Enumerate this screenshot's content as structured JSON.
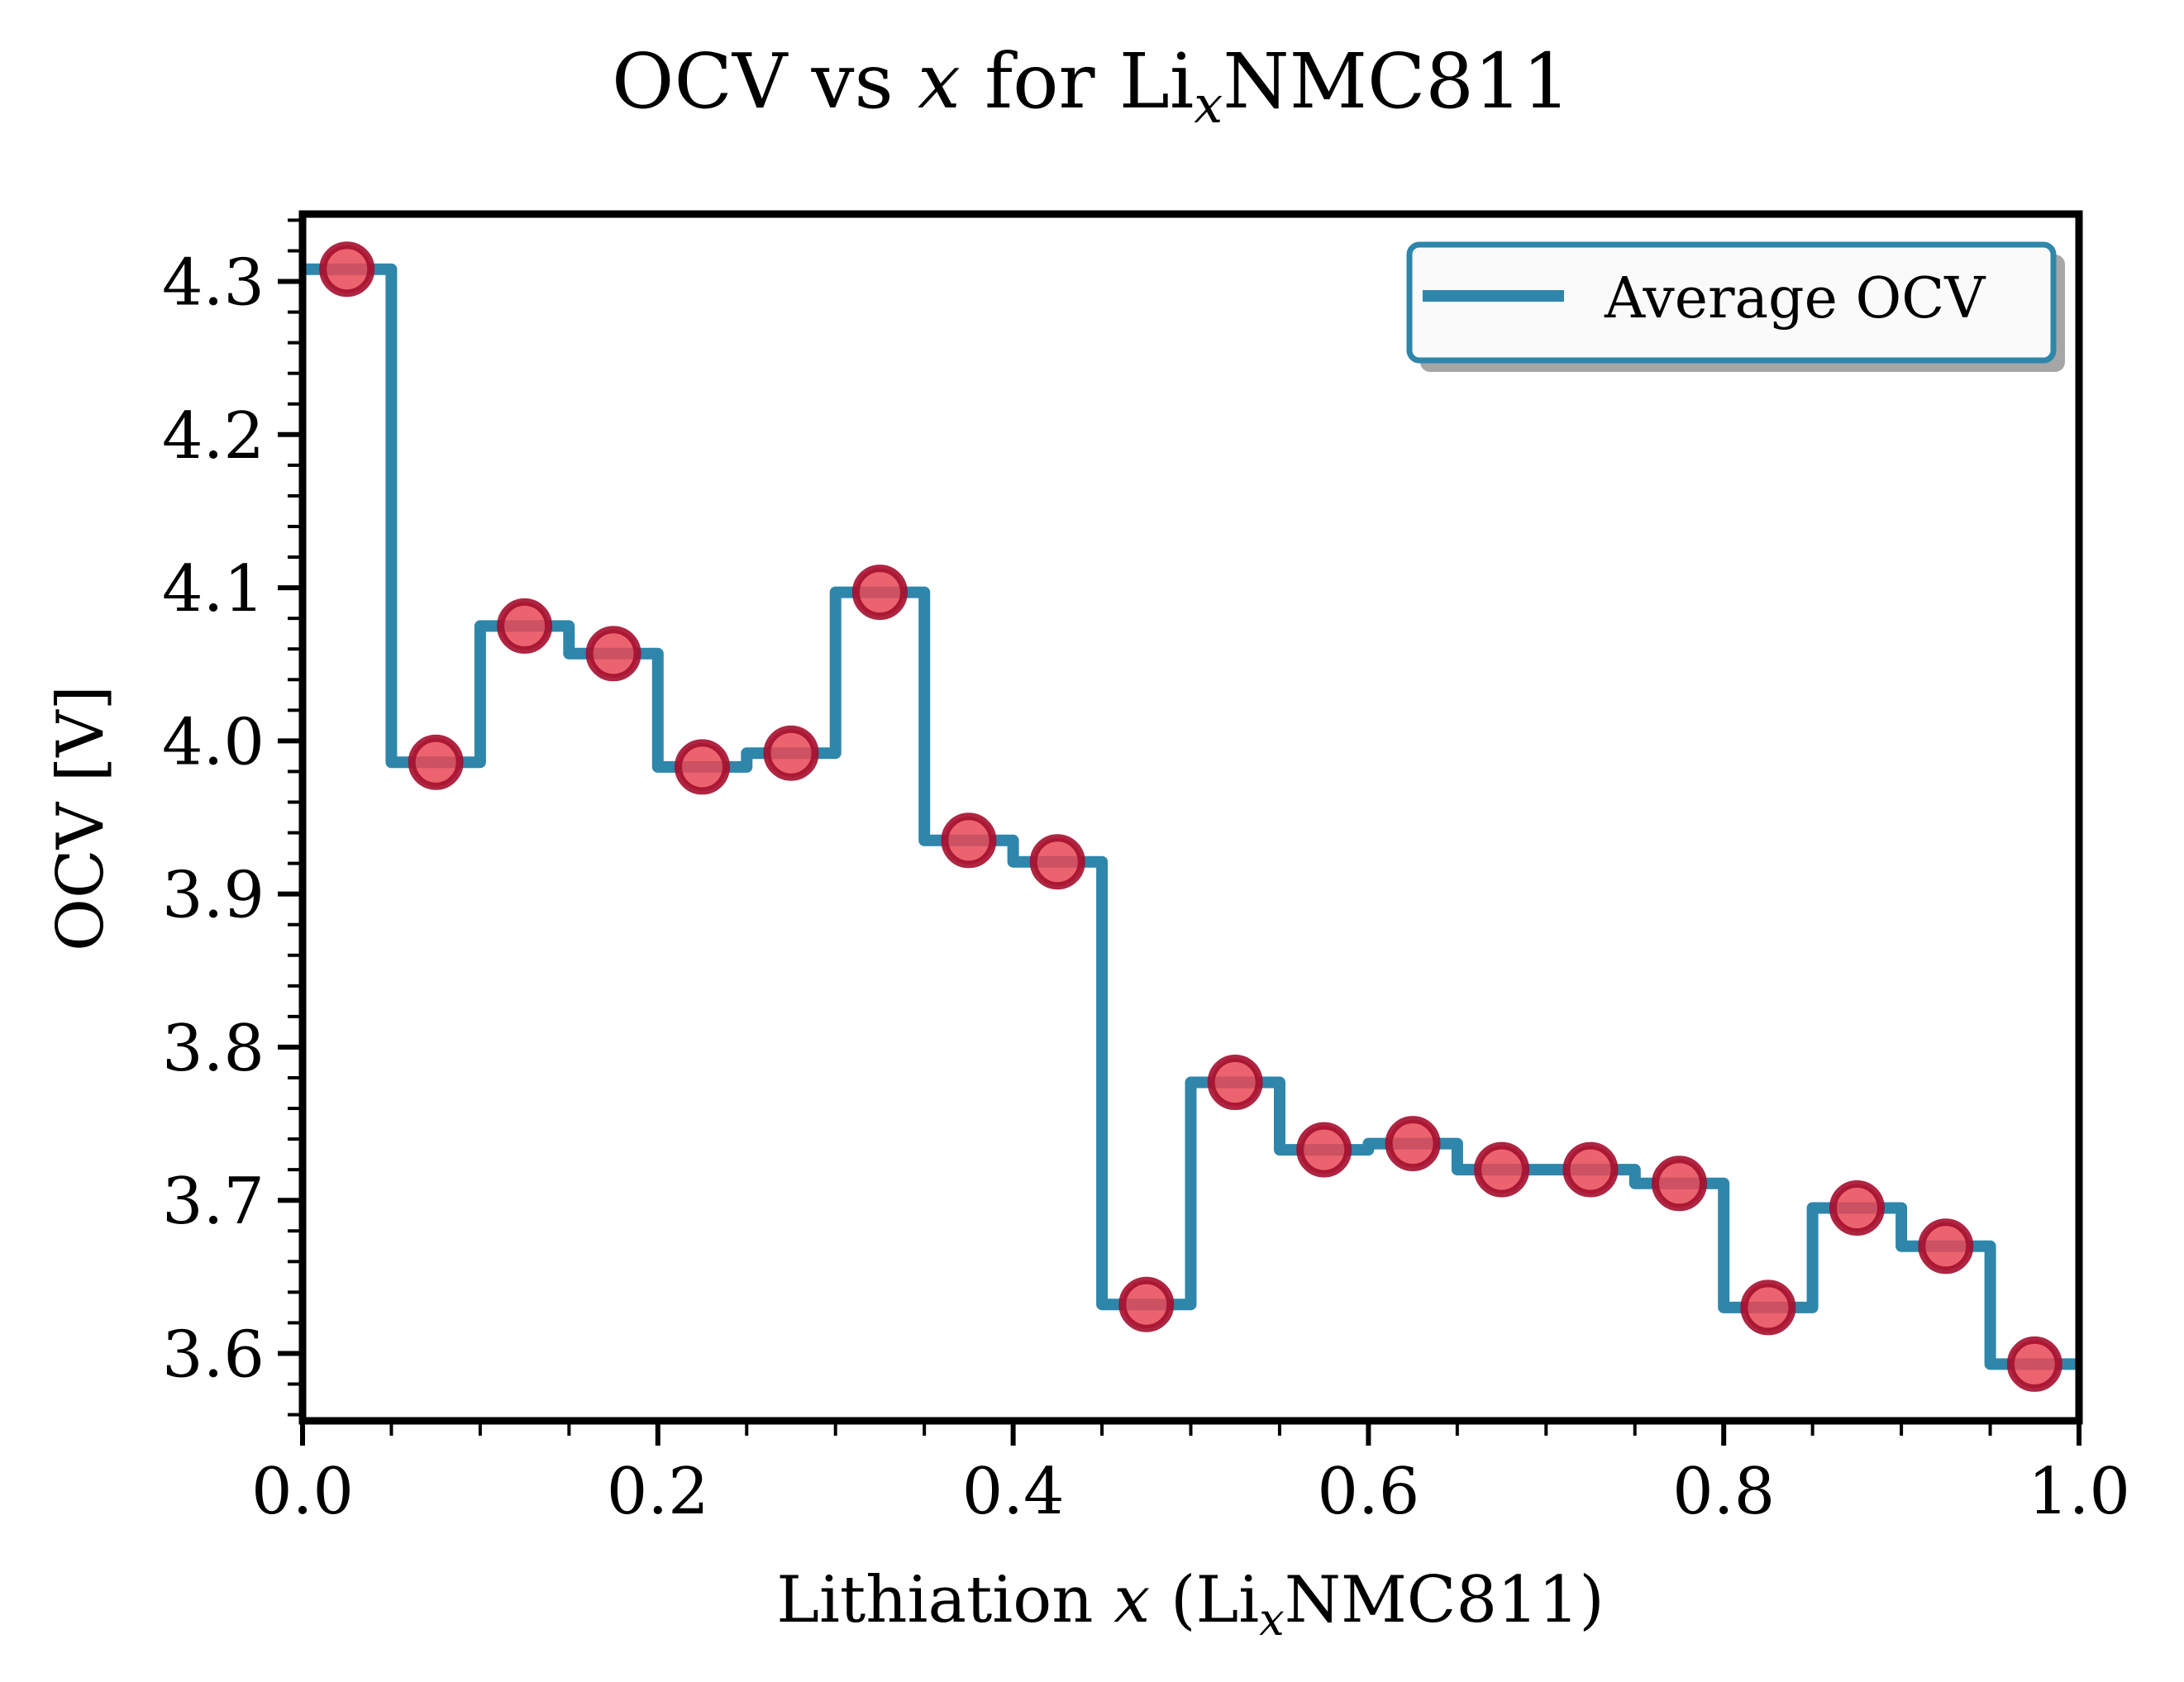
{
  "chart_data": {
    "type": "line",
    "subtype": "step-with-markers",
    "title": {
      "prefix": "OCV vs ",
      "italic_var": "x",
      "middle": " for Li",
      "subscript": "x",
      "suffix": "NMC811"
    },
    "xlabel": {
      "prefix": "Lithiation ",
      "italic_var": "x",
      "middle": " (Li",
      "subscript": "x",
      "suffix": "NMC811)"
    },
    "ylabel": "OCV [V]",
    "xlim": [
      0.0,
      1.0
    ],
    "ylim": [
      3.556,
      4.344
    ],
    "xticks": [
      0.0,
      0.2,
      0.4,
      0.6,
      0.8,
      1.0
    ],
    "xtick_labels": [
      "0.0",
      "0.2",
      "0.4",
      "0.6",
      "0.8",
      "1.0"
    ],
    "x_minor_step": 0.05,
    "yticks": [
      3.6,
      3.7,
      3.8,
      3.9,
      4.0,
      4.1,
      4.2,
      4.3
    ],
    "ytick_labels": [
      "3.6",
      "3.7",
      "3.8",
      "3.9",
      "4.0",
      "4.1",
      "4.2",
      "4.3"
    ],
    "y_minor_step": 0.02,
    "grid": false,
    "legend": {
      "position": "top-right",
      "entries": [
        "Average OCV"
      ]
    },
    "colors": {
      "line": "#2E86AB",
      "marker_fill": "#E84855",
      "marker_edge": "#A50E2D",
      "legend_edge": "#2E86AB"
    },
    "series": [
      {
        "name": "Average OCV",
        "step_edges": [
          0.0,
          0.05,
          0.1,
          0.15,
          0.2,
          0.25,
          0.3,
          0.35,
          0.4,
          0.45,
          0.5,
          0.55,
          0.6,
          0.65,
          0.7,
          0.75,
          0.8,
          0.85,
          0.9,
          0.95,
          1.0
        ],
        "x": [
          0.025,
          0.075,
          0.125,
          0.175,
          0.225,
          0.275,
          0.325,
          0.375,
          0.425,
          0.475,
          0.525,
          0.575,
          0.625,
          0.675,
          0.725,
          0.775,
          0.825,
          0.875,
          0.925,
          0.975
        ],
        "y": [
          4.308,
          3.986,
          4.075,
          4.057,
          3.983,
          3.992,
          4.097,
          3.935,
          3.921,
          3.632,
          3.777,
          3.733,
          3.737,
          3.72,
          3.72,
          3.711,
          3.63,
          3.695,
          3.67,
          3.593
        ]
      }
    ]
  }
}
